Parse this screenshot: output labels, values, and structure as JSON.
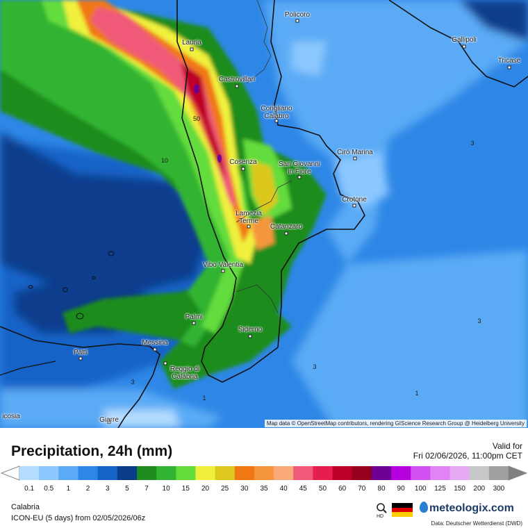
{
  "map": {
    "region": "Calabria",
    "attribution": "Map data © OpenStreetMap contributors, rendering GIScience Research Group @ Heidelberg University",
    "cities": [
      {
        "name": "Policoro"
      },
      {
        "name": "Gallipoli"
      },
      {
        "name": "Tricase"
      },
      {
        "name": "Lauria"
      },
      {
        "name": "Castrovillari"
      },
      {
        "name": "Corigliano\nCalabro"
      },
      {
        "name": "Cirò Marina"
      },
      {
        "name": "Cosenza"
      },
      {
        "name": "San Giovanni\nin Fiore"
      },
      {
        "name": "Crotone"
      },
      {
        "name": "Lamezia\nTerme"
      },
      {
        "name": "Catanzaro"
      },
      {
        "name": "Vibo Valentia"
      },
      {
        "name": "Palmi"
      },
      {
        "name": "Siderno"
      },
      {
        "name": "Messina"
      },
      {
        "name": "Patti"
      },
      {
        "name": "Reggio di\nCalabria"
      },
      {
        "name": "Giarre"
      },
      {
        "name": "icosia"
      }
    ],
    "contour_labels": [
      "50",
      "10",
      "3",
      "3",
      "3",
      "3",
      "1",
      "1"
    ]
  },
  "legend": {
    "title": "Precipitation, 24h (mm)",
    "valid_label": "Valid for",
    "valid_date": "Fri 02/06/2026, 11:00pm CET",
    "model_line": "ICON-EU (5 days) from  02/05/2026/06z",
    "hd_label": "HD",
    "brand": "meteologix.com",
    "source": "Data: Deutscher Wetterdienst (DWD)",
    "ticks": [
      "0.1",
      "0.5",
      "1",
      "2",
      "3",
      "5",
      "7",
      "10",
      "15",
      "20",
      "25",
      "30",
      "35",
      "40",
      "45",
      "50",
      "60",
      "70",
      "80",
      "90",
      "100",
      "125",
      "150",
      "200",
      "300"
    ],
    "colors": [
      "#b4dcff",
      "#8cc8ff",
      "#5aaaf5",
      "#2e87e6",
      "#1464c8",
      "#0a3c8c",
      "#1e8c1e",
      "#32b432",
      "#64dc3c",
      "#f0f03c",
      "#dcc81e",
      "#f07814",
      "#f5963c",
      "#faaa78",
      "#f05a78",
      "#e61e50",
      "#be0028",
      "#96001e",
      "#6e0096",
      "#b400dc",
      "#d250f0",
      "#e182f5",
      "#e6aaf5",
      "#c8c8c8",
      "#a0a0a0"
    ]
  }
}
